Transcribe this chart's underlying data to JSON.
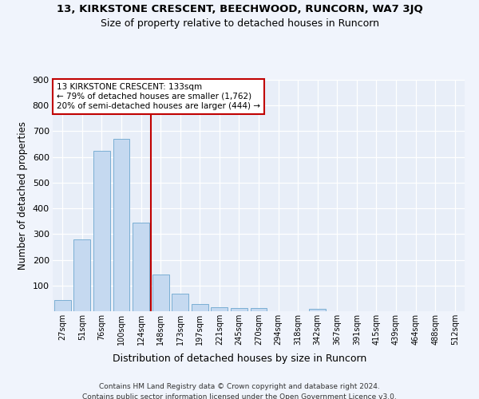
{
  "title": "13, KIRKSTONE CRESCENT, BEECHWOOD, RUNCORN, WA7 3JQ",
  "subtitle": "Size of property relative to detached houses in Runcorn",
  "xlabel": "Distribution of detached houses by size in Runcorn",
  "ylabel": "Number of detached properties",
  "bar_labels": [
    "27sqm",
    "51sqm",
    "76sqm",
    "100sqm",
    "124sqm",
    "148sqm",
    "173sqm",
    "197sqm",
    "221sqm",
    "245sqm",
    "270sqm",
    "294sqm",
    "318sqm",
    "342sqm",
    "367sqm",
    "391sqm",
    "415sqm",
    "439sqm",
    "464sqm",
    "488sqm",
    "512sqm"
  ],
  "bar_values": [
    43,
    280,
    623,
    670,
    345,
    143,
    67,
    29,
    15,
    12,
    12,
    0,
    0,
    10,
    0,
    0,
    0,
    0,
    0,
    0,
    0
  ],
  "bar_color": "#c5d9f0",
  "bar_edge_color": "#7bafd4",
  "vline_x": 4.5,
  "vline_color": "#c00000",
  "annotation_text": "13 KIRKSTONE CRESCENT: 133sqm\n← 79% of detached houses are smaller (1,762)\n20% of semi-detached houses are larger (444) →",
  "annotation_box_color": "#ffffff",
  "annotation_box_edge_color": "#c00000",
  "ylim": [
    0,
    900
  ],
  "yticks": [
    0,
    100,
    200,
    300,
    400,
    500,
    600,
    700,
    800,
    900
  ],
  "bg_color": "#f0f4fc",
  "plot_bg_color": "#e8eef8",
  "footer": "Contains HM Land Registry data © Crown copyright and database right 2024.\nContains public sector information licensed under the Open Government Licence v3.0.",
  "title_fontsize": 9.5,
  "subtitle_fontsize": 9,
  "ylabel_fontsize": 8.5,
  "xlabel_fontsize": 9,
  "footer_fontsize": 6.5,
  "annot_fontsize": 7.5
}
